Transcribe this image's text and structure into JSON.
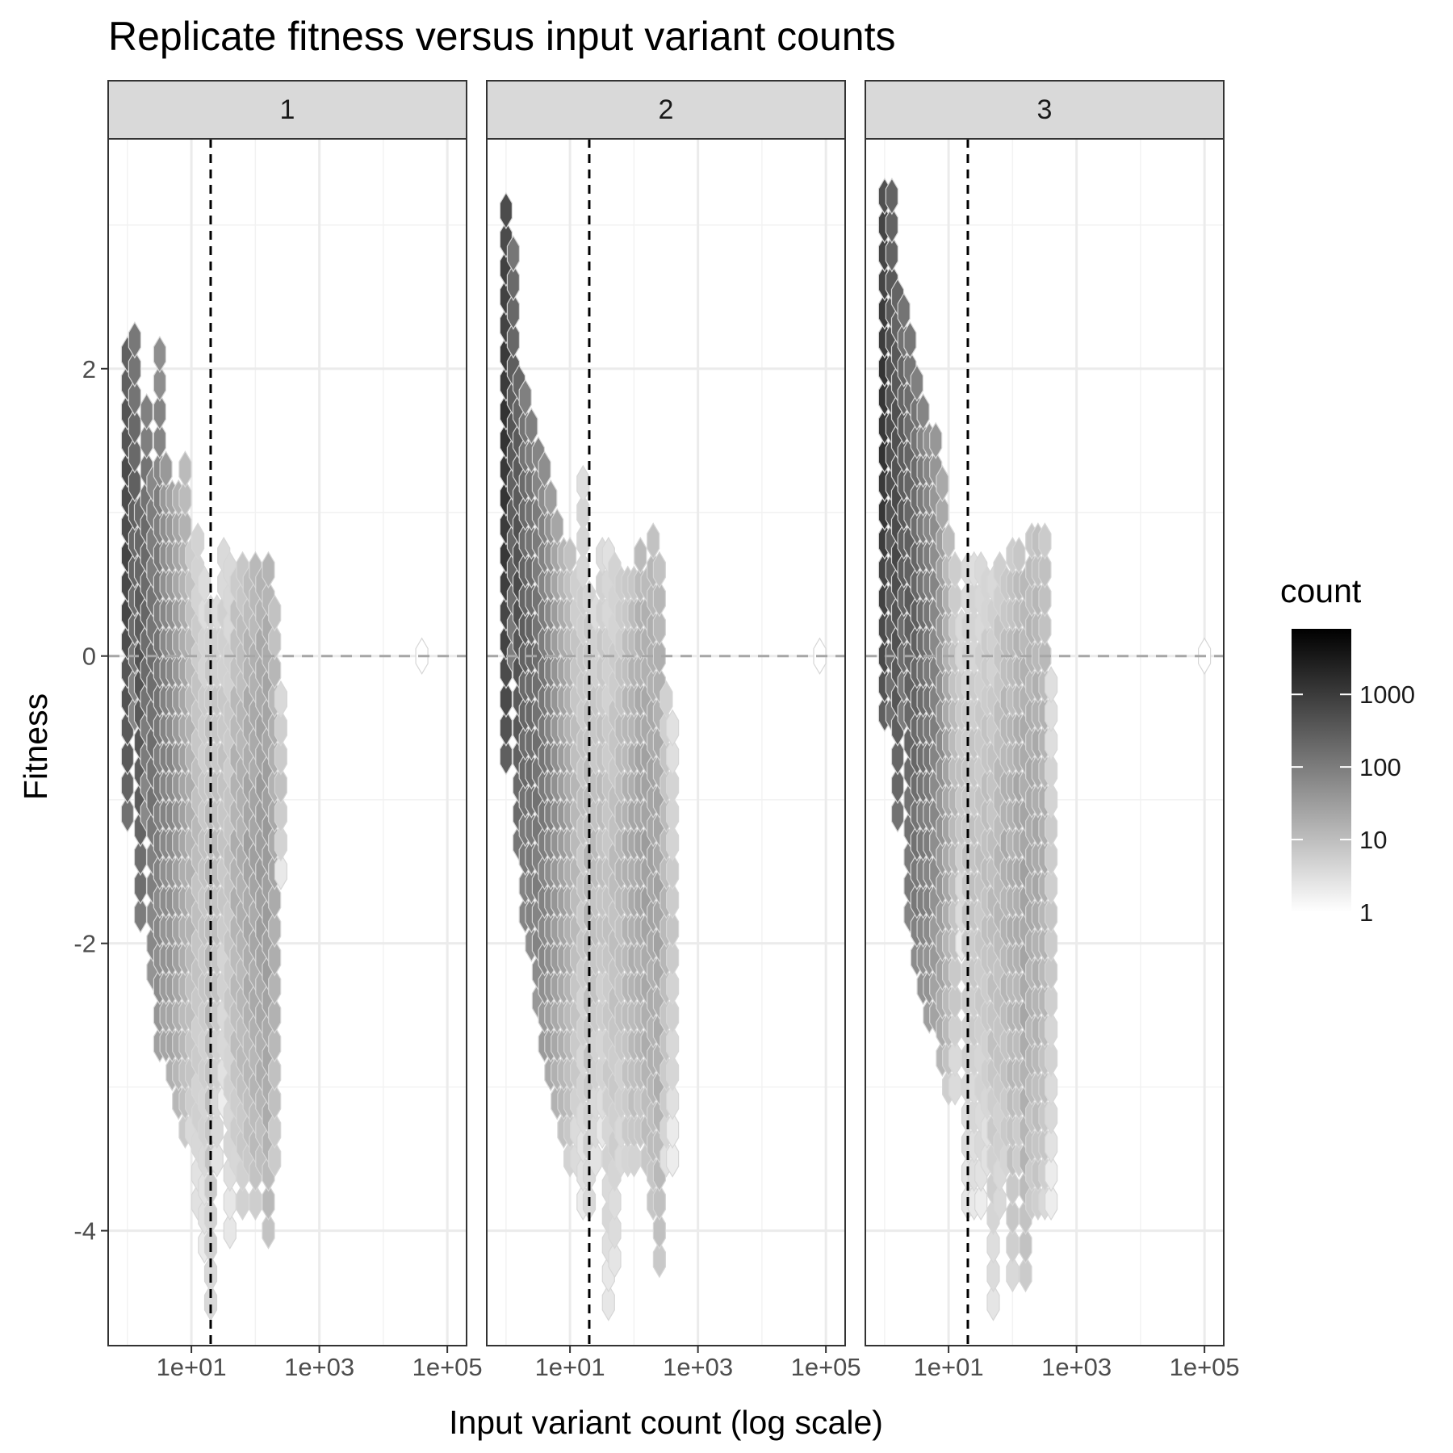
{
  "chart_data": {
    "type": "heatmap",
    "subtype": "hexbin-facets",
    "title": "Replicate fitness versus input variant counts",
    "xlabel": "Input variant count (log scale)",
    "ylabel": "Fitness",
    "x_scale": "log10",
    "xlim": [
      0.5,
      200000
    ],
    "ylim": [
      -4.8,
      3.6
    ],
    "x_ticks": [
      {
        "value": 10,
        "label": "1e+01"
      },
      {
        "value": 1000,
        "label": "1e+03"
      },
      {
        "value": 100000,
        "label": "1e+05"
      }
    ],
    "y_ticks": [
      {
        "value": 2,
        "label": "2"
      },
      {
        "value": 0,
        "label": "0"
      },
      {
        "value": -2,
        "label": "-2"
      },
      {
        "value": -4,
        "label": "-4"
      }
    ],
    "grid": true,
    "reference_lines": {
      "horizontal_dashed_gray_y": 0,
      "vertical_dashed_black_x": 20
    },
    "legend": {
      "title": "count",
      "scale": "log10",
      "placement": "right",
      "color_low": "#ffffff",
      "color_high": "#000000",
      "range": [
        1,
        8000
      ],
      "ticks": [
        {
          "value": 1,
          "label": "1"
        },
        {
          "value": 10,
          "label": "10"
        },
        {
          "value": 100,
          "label": "100"
        },
        {
          "value": 1000,
          "label": "1000"
        }
      ]
    },
    "facets": [
      {
        "label": "1",
        "bins": [
          {
            "x": 1,
            "ymin": -1.1,
            "ymax": 2.1,
            "count": 800
          },
          {
            "x": 1.3,
            "ymin": -0.4,
            "ymax": 2.3,
            "count": 300
          },
          {
            "x": 1.6,
            "ymin": -1.8,
            "ymax": 1.0,
            "count": 500
          },
          {
            "x": 2.0,
            "ymin": -1.1,
            "ymax": 1.6,
            "count": 250
          },
          {
            "x": 2.5,
            "ymin": -2.2,
            "ymax": 1.2,
            "count": 200
          },
          {
            "x": 3.2,
            "ymin": -2.7,
            "ymax": 2.0,
            "count": 150
          },
          {
            "x": 4.0,
            "ymin": -2.7,
            "ymax": 1.2,
            "count": 100
          },
          {
            "x": 5.0,
            "ymin": -2.9,
            "ymax": 1.2,
            "count": 80
          },
          {
            "x": 6.3,
            "ymin": -3.1,
            "ymax": 1.2,
            "count": 50
          },
          {
            "x": 8.0,
            "ymin": -3.3,
            "ymax": 1.2,
            "count": 30
          },
          {
            "x": 10,
            "ymin": -3.3,
            "ymax": 0.8,
            "count": 20
          },
          {
            "x": 12.6,
            "ymin": -3.8,
            "ymax": 0.8,
            "count": 12
          },
          {
            "x": 16,
            "ymin": -4.1,
            "ymax": 0.4,
            "count": 10
          },
          {
            "x": 20,
            "ymin": -4.5,
            "ymax": 0.2,
            "count": 15
          },
          {
            "x": 25,
            "ymin": -3.5,
            "ymax": 0.3,
            "count": 12
          },
          {
            "x": 32,
            "ymin": -3.1,
            "ymax": 0.6,
            "count": 10
          },
          {
            "x": 40,
            "ymin": -4.0,
            "ymax": 0.6,
            "count": 10
          },
          {
            "x": 50,
            "ymin": -3.5,
            "ymax": 0.6,
            "count": 20
          },
          {
            "x": 63,
            "ymin": -3.8,
            "ymax": 0.6,
            "count": 20
          },
          {
            "x": 80,
            "ymin": -3.5,
            "ymax": 0.6,
            "count": 30
          },
          {
            "x": 100,
            "ymin": -3.8,
            "ymax": 0.6,
            "count": 30
          },
          {
            "x": 126,
            "ymin": -3.5,
            "ymax": 0.6,
            "count": 40
          },
          {
            "x": 160,
            "ymin": -4.0,
            "ymax": 0.6,
            "count": 40
          },
          {
            "x": 200,
            "ymin": -3.5,
            "ymax": 0.2,
            "count": 25
          },
          {
            "x": 250,
            "ymin": -1.5,
            "ymax": -0.3,
            "count": 10
          },
          {
            "x": 40000,
            "ymin": 0,
            "ymax": 0,
            "count": 1
          }
        ]
      },
      {
        "label": "2",
        "bins": [
          {
            "x": 1,
            "ymin": -0.7,
            "ymax": 3.0,
            "count": 1500
          },
          {
            "x": 1.3,
            "ymin": 0.0,
            "ymax": 2.8,
            "count": 400
          },
          {
            "x": 1.6,
            "ymin": -1.3,
            "ymax": 2.0,
            "count": 600
          },
          {
            "x": 2.0,
            "ymin": -1.8,
            "ymax": 1.8,
            "count": 300
          },
          {
            "x": 2.5,
            "ymin": -2.0,
            "ymax": 1.6,
            "count": 250
          },
          {
            "x": 3.2,
            "ymin": -2.4,
            "ymax": 1.4,
            "count": 200
          },
          {
            "x": 4.0,
            "ymin": -2.7,
            "ymax": 1.2,
            "count": 150
          },
          {
            "x": 5.0,
            "ymin": -2.9,
            "ymax": 1.0,
            "count": 100
          },
          {
            "x": 6.3,
            "ymin": -3.1,
            "ymax": 0.8,
            "count": 60
          },
          {
            "x": 8.0,
            "ymin": -3.3,
            "ymax": 0.8,
            "count": 40
          },
          {
            "x": 10,
            "ymin": -3.5,
            "ymax": 0.8,
            "count": 25
          },
          {
            "x": 12.6,
            "ymin": -3.5,
            "ymax": 0.6,
            "count": 15
          },
          {
            "x": 16,
            "ymin": -3.8,
            "ymax": 1.2,
            "count": 10
          },
          {
            "x": 20,
            "ymin": -3.8,
            "ymax": 0.5,
            "count": 15
          },
          {
            "x": 25,
            "ymin": -3.5,
            "ymax": 0.3,
            "count": 12
          },
          {
            "x": 32,
            "ymin": -3.3,
            "ymax": 0.8,
            "count": 12
          },
          {
            "x": 40,
            "ymin": -4.5,
            "ymax": 0.8,
            "count": 10
          },
          {
            "x": 50,
            "ymin": -4.2,
            "ymax": 0.6,
            "count": 12
          },
          {
            "x": 63,
            "ymin": -3.5,
            "ymax": 0.6,
            "count": 15
          },
          {
            "x": 80,
            "ymin": -3.5,
            "ymax": 0.6,
            "count": 20
          },
          {
            "x": 100,
            "ymin": -3.5,
            "ymax": 0.6,
            "count": 25
          },
          {
            "x": 126,
            "ymin": -3.3,
            "ymax": 0.6,
            "count": 30
          },
          {
            "x": 160,
            "ymin": -3.5,
            "ymax": 0.6,
            "count": 35
          },
          {
            "x": 200,
            "ymin": -3.8,
            "ymax": 0.8,
            "count": 30
          },
          {
            "x": 250,
            "ymin": -4.2,
            "ymax": 0.5,
            "count": 30
          },
          {
            "x": 320,
            "ymin": -3.5,
            "ymax": -0.3,
            "count": 15
          },
          {
            "x": 400,
            "ymin": -3.5,
            "ymax": -0.5,
            "count": 8
          },
          {
            "x": 80000,
            "ymin": 0,
            "ymax": 0,
            "count": 1
          }
        ]
      },
      {
        "label": "3",
        "bins": [
          {
            "x": 1,
            "ymin": -0.4,
            "ymax": 3.1,
            "count": 1500
          },
          {
            "x": 1.3,
            "ymin": -0.4,
            "ymax": 3.3,
            "count": 600
          },
          {
            "x": 1.6,
            "ymin": -1.1,
            "ymax": 2.4,
            "count": 700
          },
          {
            "x": 2.0,
            "ymin": -0.4,
            "ymax": 2.4,
            "count": 400
          },
          {
            "x": 2.5,
            "ymin": -1.8,
            "ymax": 2.2,
            "count": 350
          },
          {
            "x": 3.2,
            "ymin": -2.1,
            "ymax": 1.8,
            "count": 300
          },
          {
            "x": 4.0,
            "ymin": -2.3,
            "ymax": 1.6,
            "count": 200
          },
          {
            "x": 5.0,
            "ymin": -2.5,
            "ymax": 1.6,
            "count": 150
          },
          {
            "x": 6.3,
            "ymin": -2.5,
            "ymax": 1.4,
            "count": 100
          },
          {
            "x": 8.0,
            "ymin": -2.8,
            "ymax": 1.2,
            "count": 60
          },
          {
            "x": 10,
            "ymin": -3.0,
            "ymax": 0.8,
            "count": 30
          },
          {
            "x": 12.6,
            "ymin": -3.0,
            "ymax": 0.6,
            "count": 15
          },
          {
            "x": 16,
            "ymin": -2.0,
            "ymax": 0.2,
            "count": 10
          },
          {
            "x": 20,
            "ymin": -3.8,
            "ymax": 0.6,
            "count": 10
          },
          {
            "x": 25,
            "ymin": -3.8,
            "ymax": 0.6,
            "count": 10
          },
          {
            "x": 32,
            "ymin": -3.8,
            "ymax": 0.6,
            "count": 10
          },
          {
            "x": 40,
            "ymin": -3.5,
            "ymax": 0.6,
            "count": 12
          },
          {
            "x": 50,
            "ymin": -4.5,
            "ymax": 0.6,
            "count": 12
          },
          {
            "x": 63,
            "ymin": -3.8,
            "ymax": 0.6,
            "count": 15
          },
          {
            "x": 80,
            "ymin": -3.5,
            "ymax": 0.6,
            "count": 20
          },
          {
            "x": 100,
            "ymin": -4.3,
            "ymax": 0.8,
            "count": 20
          },
          {
            "x": 126,
            "ymin": -3.5,
            "ymax": 0.8,
            "count": 25
          },
          {
            "x": 160,
            "ymin": -4.3,
            "ymax": 0.6,
            "count": 30
          },
          {
            "x": 200,
            "ymin": -3.8,
            "ymax": 0.8,
            "count": 25
          },
          {
            "x": 250,
            "ymin": -3.8,
            "ymax": 0.8,
            "count": 25
          },
          {
            "x": 320,
            "ymin": -3.8,
            "ymax": 0.8,
            "count": 20
          },
          {
            "x": 400,
            "ymin": -3.8,
            "ymax": -0.3,
            "count": 8
          },
          {
            "x": 100000,
            "ymin": 0,
            "ymax": 0,
            "count": 1
          }
        ]
      }
    ]
  }
}
